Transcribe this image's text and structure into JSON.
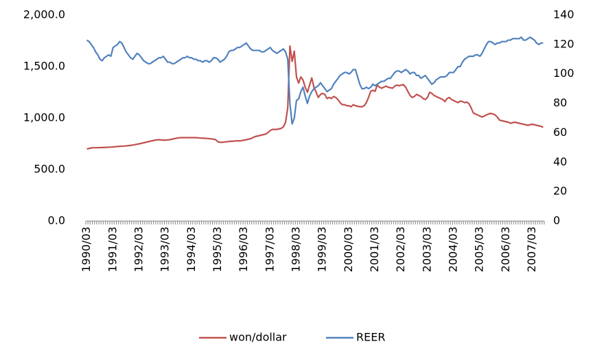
{
  "chart_data": {
    "type": "line",
    "categories": [
      "1990/03",
      null,
      null,
      null,
      null,
      null,
      null,
      null,
      null,
      null,
      null,
      null,
      "1991/03",
      null,
      null,
      null,
      null,
      null,
      null,
      null,
      null,
      null,
      null,
      null,
      "1992/03",
      null,
      null,
      null,
      null,
      null,
      null,
      null,
      null,
      null,
      null,
      null,
      "1993/03",
      null,
      null,
      null,
      null,
      null,
      null,
      null,
      null,
      null,
      null,
      null,
      "1994/03",
      null,
      null,
      null,
      null,
      null,
      null,
      null,
      null,
      null,
      null,
      null,
      "1995/03",
      null,
      null,
      null,
      null,
      null,
      null,
      null,
      null,
      null,
      null,
      null,
      "1996/03",
      null,
      null,
      null,
      null,
      null,
      null,
      null,
      null,
      null,
      null,
      null,
      "1997/03",
      null,
      null,
      null,
      null,
      null,
      null,
      null,
      null,
      null,
      null,
      null,
      "1998/03",
      null,
      null,
      null,
      null,
      null,
      null,
      null,
      null,
      null,
      null,
      null,
      "1999/03",
      null,
      null,
      null,
      null,
      null,
      null,
      null,
      null,
      null,
      null,
      null,
      "2000/03",
      null,
      null,
      null,
      null,
      null,
      null,
      null,
      null,
      null,
      null,
      null,
      "2001/03",
      null,
      null,
      null,
      null,
      null,
      null,
      null,
      null,
      null,
      null,
      null,
      "2002/03",
      null,
      null,
      null,
      null,
      null,
      null,
      null,
      null,
      null,
      null,
      null,
      "2003/03",
      null,
      null,
      null,
      null,
      null,
      null,
      null,
      null,
      null,
      null,
      null,
      "2004/03",
      null,
      null,
      null,
      null,
      null,
      null,
      null,
      null,
      null,
      null,
      null,
      "2005/03",
      null,
      null,
      null,
      null,
      null,
      null,
      null,
      null,
      null,
      null,
      null,
      "2006/03",
      null,
      null,
      null,
      null,
      null,
      null,
      null,
      null,
      null,
      null,
      null,
      "2007/03",
      null,
      null,
      null,
      null,
      null
    ],
    "series": [
      {
        "name": "won/dollar",
        "color": "#c0504d",
        "values": [
          700,
          705,
          710,
          712,
          712,
          713,
          713,
          714,
          715,
          716,
          717,
          718,
          720,
          722,
          724,
          726,
          727,
          728,
          730,
          732,
          735,
          738,
          742,
          746,
          750,
          755,
          760,
          765,
          770,
          775,
          780,
          785,
          788,
          790,
          788,
          786,
          786,
          788,
          790,
          795,
          800,
          805,
          808,
          810,
          810,
          810,
          810,
          810,
          810,
          810,
          810,
          808,
          806,
          805,
          804,
          802,
          800,
          798,
          795,
          790,
          770,
          765,
          765,
          768,
          770,
          772,
          775,
          775,
          778,
          780,
          778,
          782,
          785,
          790,
          795,
          800,
          810,
          820,
          825,
          830,
          835,
          840,
          845,
          860,
          880,
          890,
          890,
          890,
          895,
          900,
          915,
          960,
          1100,
          1700,
          1550,
          1650,
          1400,
          1340,
          1400,
          1370,
          1300,
          1250,
          1320,
          1390,
          1300,
          1250,
          1200,
          1230,
          1240,
          1230,
          1190,
          1200,
          1190,
          1210,
          1200,
          1180,
          1150,
          1130,
          1130,
          1120,
          1120,
          1110,
          1130,
          1120,
          1115,
          1110,
          1110,
          1120,
          1150,
          1200,
          1260,
          1270,
          1260,
          1320,
          1300,
          1290,
          1300,
          1310,
          1300,
          1295,
          1290,
          1310,
          1320,
          1315,
          1320,
          1325,
          1300,
          1260,
          1220,
          1200,
          1210,
          1230,
          1220,
          1210,
          1190,
          1180,
          1200,
          1250,
          1240,
          1220,
          1210,
          1200,
          1190,
          1180,
          1160,
          1190,
          1200,
          1180,
          1170,
          1160,
          1150,
          1165,
          1160,
          1150,
          1155,
          1140,
          1100,
          1050,
          1040,
          1030,
          1020,
          1010,
          1020,
          1030,
          1040,
          1045,
          1040,
          1030,
          1010,
          980,
          975,
          970,
          965,
          960,
          950,
          955,
          960,
          955,
          950,
          945,
          940,
          935,
          930,
          935,
          940,
          935,
          930,
          925,
          920,
          910
        ]
      },
      {
        "name": "REER",
        "color": "#4f81bd",
        "axis": "y2",
        "values": [
          123,
          122,
          120,
          118,
          115,
          113,
          110,
          109,
          111,
          112,
          113,
          112,
          118,
          119,
          120,
          122,
          121,
          118,
          115,
          113,
          111,
          110,
          112,
          114,
          113,
          111,
          109,
          108,
          107,
          107,
          108,
          109,
          110,
          111,
          111,
          112,
          110,
          108,
          108,
          107,
          107,
          108,
          109,
          110,
          111,
          111,
          112,
          111,
          111,
          110,
          110,
          109,
          109,
          108,
          109,
          109,
          108,
          109,
          111,
          111,
          110,
          108,
          109,
          110,
          112,
          115,
          116,
          116,
          117,
          118,
          118,
          119,
          120,
          121,
          119,
          117,
          116,
          116,
          116,
          116,
          115,
          115,
          116,
          117,
          118,
          116,
          115,
          114,
          115,
          116,
          117,
          115,
          110,
          80,
          66,
          70,
          82,
          83,
          88,
          91,
          85,
          80,
          85,
          88,
          90,
          91,
          92,
          94,
          92,
          90,
          88,
          89,
          90,
          93,
          95,
          97,
          99,
          100,
          101,
          101,
          100,
          101,
          103,
          103,
          98,
          93,
          90,
          90,
          91,
          90,
          91,
          93,
          92,
          93,
          94,
          95,
          95,
          96,
          97,
          97,
          99,
          101,
          102,
          102,
          101,
          102,
          103,
          102,
          100,
          101,
          101,
          99,
          99,
          97,
          98,
          99,
          97,
          95,
          93,
          94,
          96,
          97,
          98,
          98,
          98,
          99,
          101,
          101,
          101,
          103,
          105,
          105,
          108,
          110,
          111,
          112,
          112,
          112,
          113,
          113,
          112,
          114,
          117,
          120,
          122,
          122,
          121,
          120,
          121,
          121,
          122,
          122,
          122,
          123,
          123,
          124,
          124,
          124,
          124,
          125,
          123,
          123,
          124,
          125,
          124,
          123,
          121,
          120,
          121,
          121
        ]
      }
    ],
    "ylim": [
      0,
      2000
    ],
    "yticks": [
      {
        "value": 0,
        "label": "0.0"
      },
      {
        "value": 500,
        "label": "500.0"
      },
      {
        "value": 1000,
        "label": "1,000.0"
      },
      {
        "value": 1500,
        "label": "1,500.0"
      },
      {
        "value": 2000,
        "label": "2,000.0"
      }
    ],
    "y2lim": [
      0,
      140
    ],
    "y2ticks": [
      0,
      20,
      40,
      60,
      80,
      100,
      120,
      140
    ],
    "legend": "bottom"
  }
}
